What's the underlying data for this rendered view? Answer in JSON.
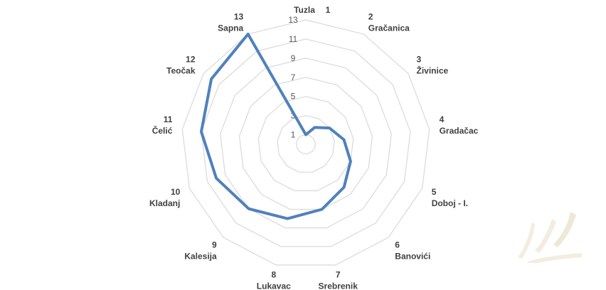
{
  "chart_data": {
    "type": "radar",
    "categories": [
      {
        "num": "1",
        "name": "Tuzla"
      },
      {
        "num": "2",
        "name": "Gračanica"
      },
      {
        "num": "3",
        "name": "Živinice"
      },
      {
        "num": "4",
        "name": "Gradačac"
      },
      {
        "num": "5",
        "name": "Doboj - I."
      },
      {
        "num": "6",
        "name": "Banovići"
      },
      {
        "num": "7",
        "name": "Srebrenik"
      },
      {
        "num": "8",
        "name": "Lukavac"
      },
      {
        "num": "9",
        "name": "Kalesija"
      },
      {
        "num": "10",
        "name": "Kladanj"
      },
      {
        "num": "11",
        "name": "Čelić"
      },
      {
        "num": "12",
        "name": "Teočak"
      },
      {
        "num": "13",
        "name": "Sapna"
      }
    ],
    "values": [
      1,
      2,
      3,
      4,
      5,
      6,
      7,
      8,
      9,
      10,
      11,
      12,
      13
    ],
    "rlim": [
      0,
      13
    ],
    "ticks": [
      "1",
      "3",
      "5",
      "7",
      "9",
      "11",
      "13"
    ],
    "series_color": "#4f81bd",
    "grid": true,
    "legend": "none"
  }
}
